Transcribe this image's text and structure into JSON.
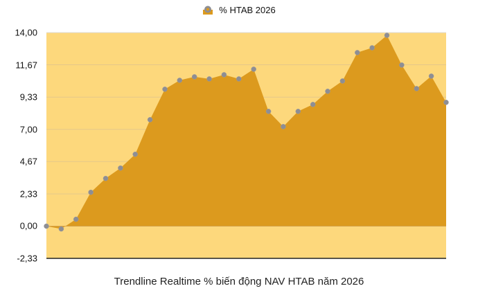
{
  "legend": {
    "label": "% HTAB 2026",
    "icon": "area-marker-icon"
  },
  "caption": "Trendline Realtime % biến động NAV HTAB năm 2026",
  "colors": {
    "plot_bg": "#FDD87C",
    "area_fill": "#DC9A1E",
    "marker": "#8E8E93",
    "gridline": "#E5C78A",
    "axis": "#222222"
  },
  "y_ticks": [
    "14,00",
    "11,67",
    "9,33",
    "7,00",
    "4,67",
    "2,33",
    "0,00",
    "-2,33"
  ],
  "chart_data": {
    "type": "area",
    "title": "Trendline Realtime % biến động NAV HTAB năm 2026",
    "xlabel": "",
    "ylabel": "",
    "legend": [
      "% HTAB 2026"
    ],
    "legend_position": "top",
    "grid": true,
    "ylim": [
      -2.33,
      14.0
    ],
    "y_tick_values": [
      14.0,
      11.67,
      9.33,
      7.0,
      4.67,
      2.33,
      0.0,
      -2.33
    ],
    "x": [
      1,
      2,
      3,
      4,
      5,
      6,
      7,
      8,
      9,
      10,
      11,
      12,
      13,
      14,
      15,
      16,
      17,
      18,
      19,
      20,
      21,
      22,
      23,
      24,
      25,
      26,
      27,
      28
    ],
    "series": [
      {
        "name": "% HTAB 2026",
        "values": [
          0.0,
          -0.2,
          0.5,
          2.45,
          3.45,
          4.2,
          5.2,
          7.7,
          9.9,
          10.55,
          10.8,
          10.65,
          10.95,
          10.65,
          11.35,
          8.3,
          7.2,
          8.3,
          8.8,
          9.75,
          10.5,
          12.55,
          12.9,
          13.8,
          11.65,
          9.95,
          10.85,
          8.95
        ]
      }
    ]
  }
}
